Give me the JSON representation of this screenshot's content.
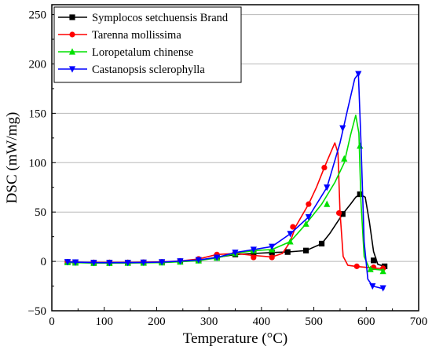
{
  "chart_data": {
    "type": "line",
    "xlabel": "Temperature (°C)",
    "ylabel": "DSC (mW/mg)",
    "xlim": [
      0,
      700
    ],
    "ylim": [
      -50,
      260
    ],
    "x_ticks": [
      0,
      100,
      200,
      300,
      400,
      500,
      600,
      700
    ],
    "y_ticks": [
      -50,
      0,
      50,
      100,
      150,
      200,
      250
    ],
    "grid": "horizontal",
    "legend_position": "top-left",
    "series": [
      {
        "name": "Symplocos setchuensis Brand",
        "color": "#000000",
        "marker": "square",
        "points": [
          [
            30,
            -1
          ],
          [
            45,
            -1.2
          ],
          [
            80,
            -1.5
          ],
          [
            110,
            -1.5
          ],
          [
            145,
            -1.4
          ],
          [
            175,
            -1.3
          ],
          [
            210,
            -1
          ],
          [
            245,
            -0.2
          ],
          [
            280,
            1
          ],
          [
            315,
            4
          ],
          [
            350,
            7
          ],
          [
            385,
            8
          ],
          [
            420,
            9
          ],
          [
            450,
            9.5
          ],
          [
            485,
            11
          ],
          [
            515,
            18
          ],
          [
            530,
            28
          ],
          [
            545,
            40
          ],
          [
            555,
            48
          ],
          [
            570,
            58
          ],
          [
            580,
            65
          ],
          [
            588,
            68
          ],
          [
            598,
            65
          ],
          [
            606,
            40
          ],
          [
            614,
            10
          ],
          [
            622,
            -3
          ],
          [
            635,
            -5
          ]
        ],
        "marker_points": [
          [
            30,
            -1
          ],
          [
            45,
            -1.2
          ],
          [
            80,
            -1.5
          ],
          [
            110,
            -1.5
          ],
          [
            145,
            -1.4
          ],
          [
            175,
            -1.3
          ],
          [
            210,
            -1
          ],
          [
            245,
            -0.2
          ],
          [
            280,
            1
          ],
          [
            315,
            4
          ],
          [
            350,
            7
          ],
          [
            385,
            8
          ],
          [
            420,
            9
          ],
          [
            450,
            9.5
          ],
          [
            485,
            11
          ],
          [
            515,
            18
          ],
          [
            555,
            48
          ],
          [
            588,
            68
          ],
          [
            614,
            1
          ],
          [
            635,
            -5
          ]
        ]
      },
      {
        "name": "Tarenna mollissima",
        "color": "#ff0000",
        "marker": "circle",
        "points": [
          [
            30,
            -0.5
          ],
          [
            45,
            -0.8
          ],
          [
            80,
            -1
          ],
          [
            110,
            -1
          ],
          [
            145,
            -1
          ],
          [
            175,
            -0.8
          ],
          [
            210,
            -0.5
          ],
          [
            245,
            0.5
          ],
          [
            280,
            2.5
          ],
          [
            315,
            7
          ],
          [
            350,
            8
          ],
          [
            385,
            6
          ],
          [
            420,
            4.5
          ],
          [
            440,
            8
          ],
          [
            455,
            20
          ],
          [
            465,
            35
          ],
          [
            490,
            58
          ],
          [
            505,
            75
          ],
          [
            520,
            95
          ],
          [
            532,
            110
          ],
          [
            540,
            120
          ],
          [
            546,
            110
          ],
          [
            550,
            50
          ],
          [
            556,
            5
          ],
          [
            565,
            -4
          ],
          [
            580,
            -5
          ],
          [
            598,
            -6
          ],
          [
            615,
            -7
          ],
          [
            635,
            -7
          ]
        ],
        "marker_points": [
          [
            30,
            -0.5
          ],
          [
            45,
            -0.8
          ],
          [
            80,
            -1
          ],
          [
            110,
            -1
          ],
          [
            145,
            -1
          ],
          [
            175,
            -0.8
          ],
          [
            210,
            -0.5
          ],
          [
            245,
            0.5
          ],
          [
            280,
            2.5
          ],
          [
            315,
            7
          ],
          [
            350,
            8
          ],
          [
            385,
            4
          ],
          [
            420,
            4
          ],
          [
            460,
            35
          ],
          [
            490,
            58
          ],
          [
            520,
            95
          ],
          [
            548,
            49
          ],
          [
            582,
            -5
          ],
          [
            614,
            -6
          ],
          [
            632,
            -7
          ]
        ]
      },
      {
        "name": "Loropetalum chinense",
        "color": "#00e000",
        "marker": "triangle-up",
        "points": [
          [
            30,
            -1
          ],
          [
            45,
            -1.3
          ],
          [
            80,
            -1.7
          ],
          [
            110,
            -1.7
          ],
          [
            145,
            -1.6
          ],
          [
            175,
            -1.5
          ],
          [
            210,
            -1.2
          ],
          [
            245,
            -0.4
          ],
          [
            280,
            0.8
          ],
          [
            315,
            3.5
          ],
          [
            350,
            8
          ],
          [
            385,
            11
          ],
          [
            420,
            12
          ],
          [
            455,
            20
          ],
          [
            485,
            38
          ],
          [
            515,
            58
          ],
          [
            540,
            80
          ],
          [
            558,
            100
          ],
          [
            570,
            128
          ],
          [
            580,
            148
          ],
          [
            586,
            130
          ],
          [
            590,
            60
          ],
          [
            596,
            5
          ],
          [
            605,
            -6
          ],
          [
            615,
            -8
          ],
          [
            635,
            -9
          ]
        ],
        "marker_points": [
          [
            30,
            -1
          ],
          [
            45,
            -1.3
          ],
          [
            80,
            -1.7
          ],
          [
            110,
            -1.7
          ],
          [
            145,
            -1.6
          ],
          [
            175,
            -1.5
          ],
          [
            210,
            -1.2
          ],
          [
            245,
            -0.4
          ],
          [
            280,
            0.8
          ],
          [
            315,
            3.5
          ],
          [
            350,
            8
          ],
          [
            385,
            11
          ],
          [
            420,
            12
          ],
          [
            455,
            20
          ],
          [
            485,
            38
          ],
          [
            525,
            58
          ],
          [
            558,
            104
          ],
          [
            588,
            117
          ],
          [
            608,
            -8
          ],
          [
            632,
            -10
          ]
        ]
      },
      {
        "name": "Castanopsis sclerophylla",
        "color": "#0000ff",
        "marker": "triangle-down",
        "points": [
          [
            30,
            -0.5
          ],
          [
            45,
            -0.8
          ],
          [
            80,
            -1.2
          ],
          [
            110,
            -1.3
          ],
          [
            145,
            -1.2
          ],
          [
            175,
            -1
          ],
          [
            210,
            -0.6
          ],
          [
            245,
            0.3
          ],
          [
            280,
            1.5
          ],
          [
            315,
            4
          ],
          [
            350,
            9
          ],
          [
            385,
            12
          ],
          [
            420,
            15
          ],
          [
            455,
            28
          ],
          [
            490,
            45
          ],
          [
            525,
            75
          ],
          [
            550,
            120
          ],
          [
            565,
            155
          ],
          [
            578,
            185
          ],
          [
            585,
            190
          ],
          [
            590,
            120
          ],
          [
            596,
            20
          ],
          [
            603,
            -18
          ],
          [
            612,
            -25
          ],
          [
            635,
            -28
          ]
        ],
        "marker_points": [
          [
            30,
            -0.5
          ],
          [
            45,
            -0.8
          ],
          [
            80,
            -1.2
          ],
          [
            110,
            -1.3
          ],
          [
            145,
            -1.2
          ],
          [
            175,
            -1
          ],
          [
            210,
            -0.6
          ],
          [
            245,
            0.3
          ],
          [
            280,
            1.5
          ],
          [
            315,
            4
          ],
          [
            350,
            9
          ],
          [
            385,
            12
          ],
          [
            420,
            15
          ],
          [
            455,
            28
          ],
          [
            490,
            45
          ],
          [
            525,
            75
          ],
          [
            555,
            135
          ],
          [
            585,
            190
          ],
          [
            612,
            -25
          ],
          [
            632,
            -27
          ]
        ]
      }
    ]
  }
}
